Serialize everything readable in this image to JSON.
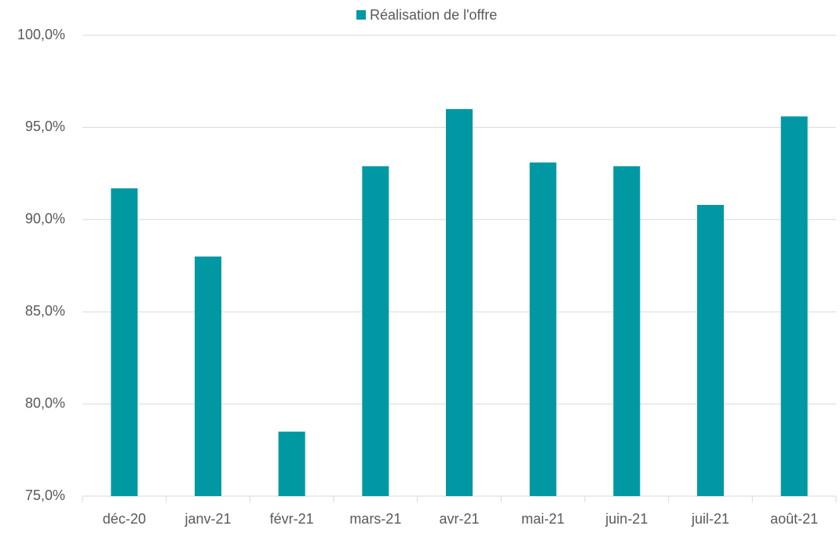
{
  "chart_data": {
    "type": "bar",
    "categories": [
      "déc-20",
      "janv-21",
      "févr-21",
      "mars-21",
      "avr-21",
      "mai-21",
      "juin-21",
      "juil-21",
      "août-21"
    ],
    "series": [
      {
        "name": "Réalisation de l'offre",
        "color": "#0098a3",
        "values": [
          91.7,
          88.0,
          78.5,
          92.9,
          96.0,
          93.1,
          92.9,
          90.8,
          95.6
        ]
      }
    ],
    "ylim": [
      75,
      100
    ],
    "yticks": [
      {
        "value": 75,
        "label": "75,0%"
      },
      {
        "value": 80,
        "label": "80,0%"
      },
      {
        "value": 85,
        "label": "85,0%"
      },
      {
        "value": 90,
        "label": "90,0%"
      },
      {
        "value": 95,
        "label": "95,0%"
      },
      {
        "value": 100,
        "label": "100,0%"
      }
    ],
    "grid": true,
    "legend": "top"
  }
}
